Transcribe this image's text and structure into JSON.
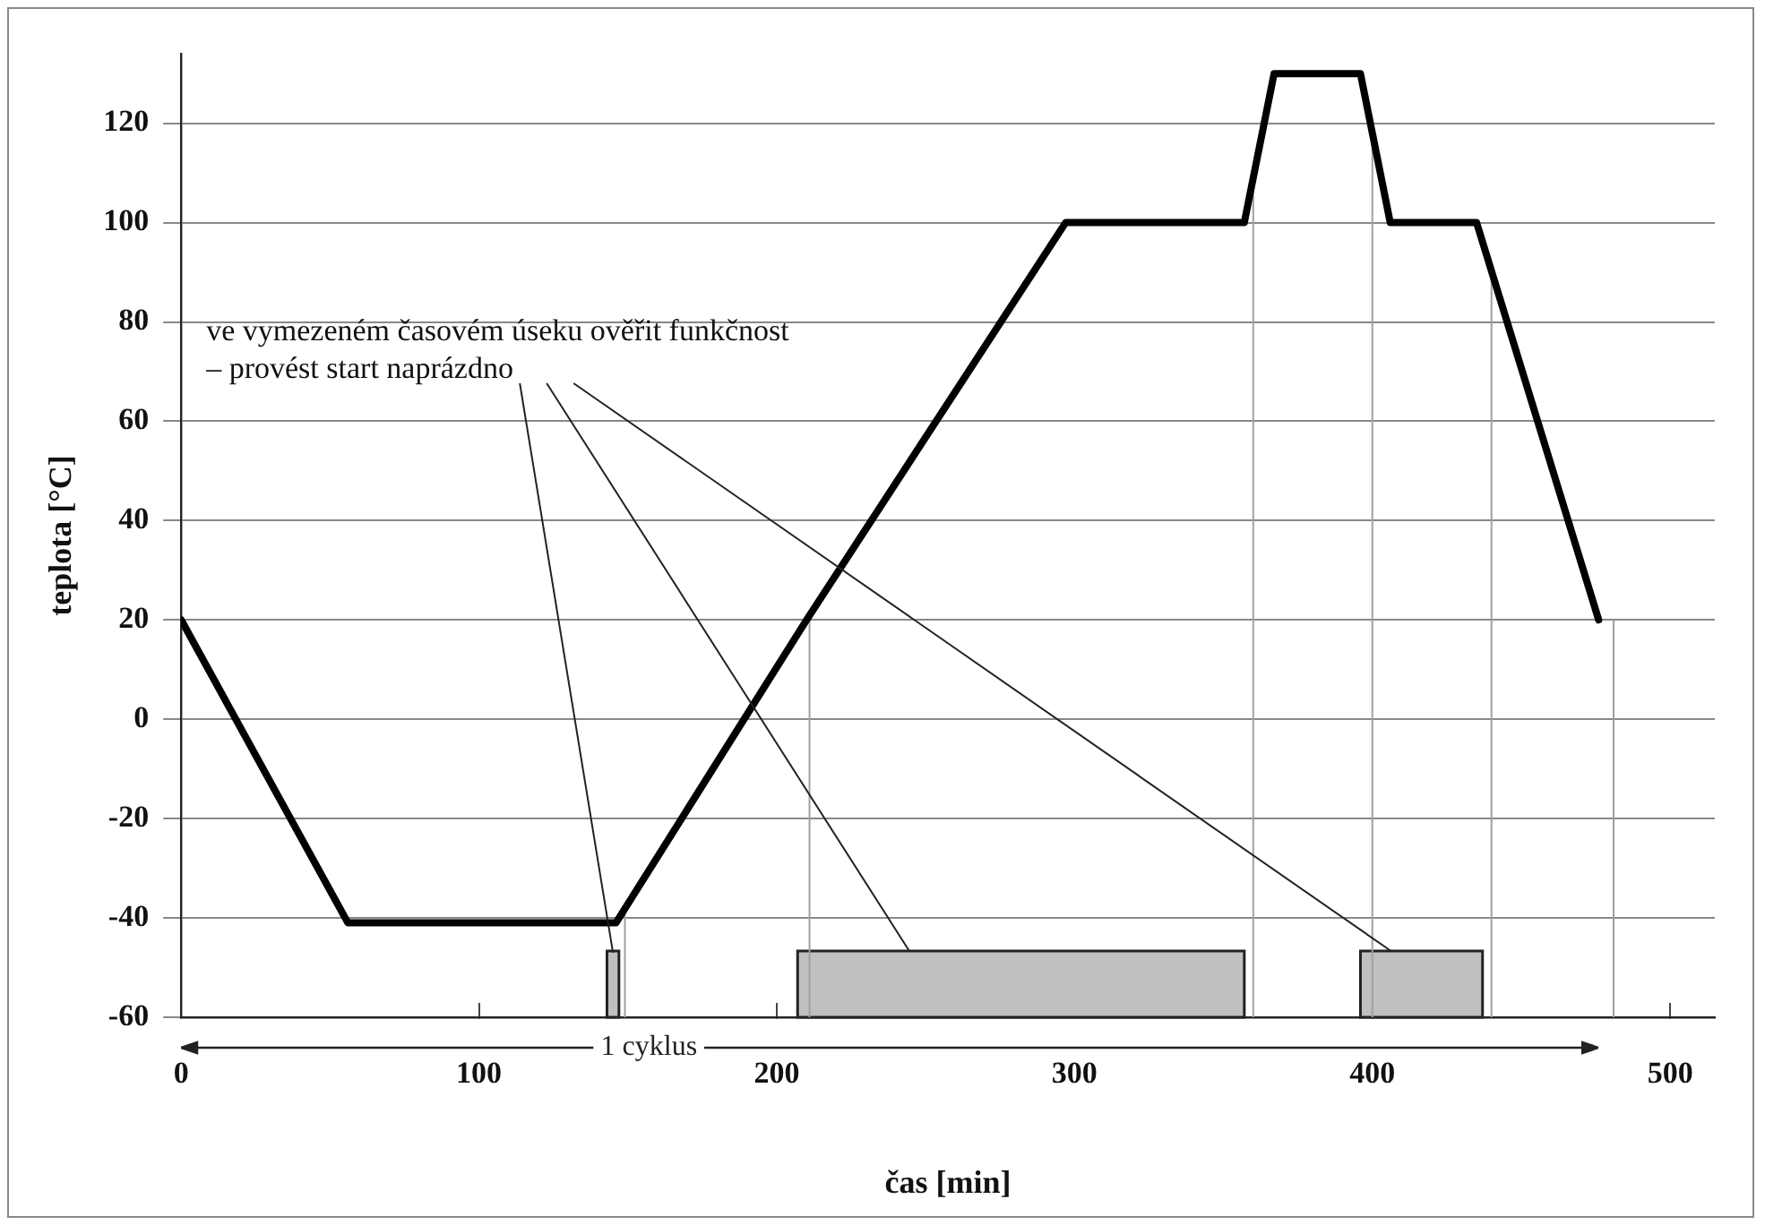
{
  "chart_data": {
    "type": "line",
    "xlabel": "čas [min]",
    "ylabel": "teplota [°C]",
    "x": [
      0,
      56,
      146,
      210,
      297,
      357,
      367,
      396,
      406,
      435,
      476
    ],
    "series": [
      {
        "color": "#000000",
        "values": [
          20,
          -41,
          -41,
          20,
          100,
          100,
          130,
          130,
          100,
          100,
          20
        ]
      }
    ],
    "xlim": [
      0,
      515
    ],
    "xticks": [
      0,
      100,
      200,
      300,
      400,
      500
    ],
    "ylim": [
      -60,
      134
    ],
    "yticks": [
      -60,
      -40,
      -20,
      0,
      20,
      40,
      60,
      80,
      100,
      120
    ],
    "grid": "y",
    "marker": "none",
    "line_style": "solid",
    "ref_lines": [
      {
        "axis": "x",
        "value": 149,
        "color": "#a0a0a0"
      },
      {
        "axis": "x",
        "value": 211,
        "color": "#a0a0a0"
      },
      {
        "axis": "x",
        "value": 360,
        "color": "#a0a0a0"
      },
      {
        "axis": "x",
        "value": 400,
        "color": "#a0a0a0"
      },
      {
        "axis": "x",
        "value": 440,
        "color": "#a0a0a0"
      },
      {
        "axis": "x",
        "value": 481,
        "color": "#a0a0a0"
      }
    ],
    "bands": [
      {
        "axis": "x",
        "from": 143,
        "to": 147,
        "color": "#c0c0c0"
      },
      {
        "axis": "x",
        "from": 207,
        "to": 357,
        "color": "#c0c0c0"
      },
      {
        "axis": "x",
        "from": 396,
        "to": 437,
        "color": "#c0c0c0"
      }
    ],
    "annotations": [
      {
        "text": "ve vymezeném časovém úseku ověřit funkčnost – provést start naprázdno",
        "x": 145,
        "y": -47
      },
      "1 cyklus"
    ]
  }
}
